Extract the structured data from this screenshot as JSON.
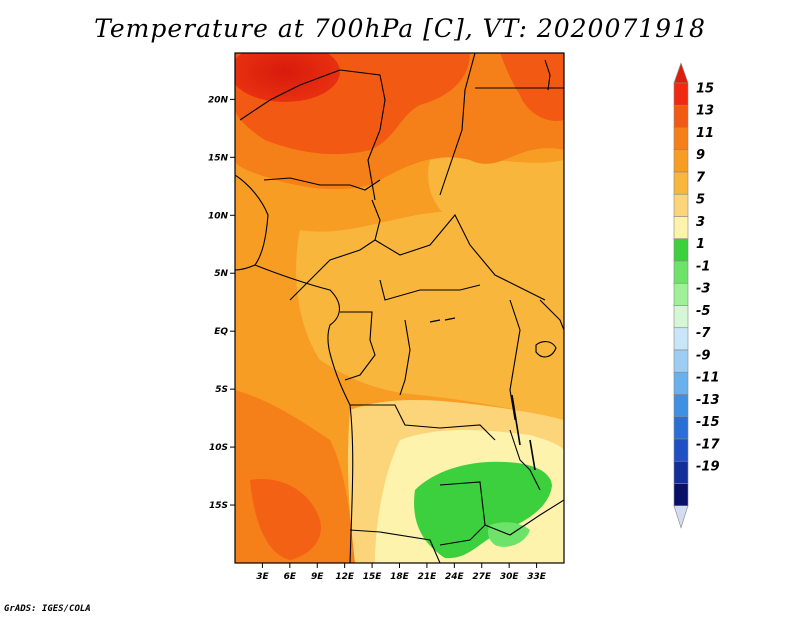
{
  "title": "Temperature at 700hPa [C], VT: 2020071918",
  "credit": "GrADS: IGES/COLA",
  "map": {
    "variable": "Temperature at 700hPa",
    "units": "C",
    "valid_time": "2020071918",
    "lon_range": [
      0,
      36
    ],
    "lat_range": [
      -20,
      24
    ],
    "lat_ticks": [
      {
        "value": 20,
        "label": "20N"
      },
      {
        "value": 15,
        "label": "15N"
      },
      {
        "value": 10,
        "label": "10N"
      },
      {
        "value": 5,
        "label": "5N"
      },
      {
        "value": 0,
        "label": "EQ"
      },
      {
        "value": -5,
        "label": "5S"
      },
      {
        "value": -10,
        "label": "10S"
      },
      {
        "value": -15,
        "label": "15S"
      }
    ],
    "lon_ticks": [
      {
        "value": 3,
        "label": "3E"
      },
      {
        "value": 6,
        "label": "6E"
      },
      {
        "value": 9,
        "label": "9E"
      },
      {
        "value": 12,
        "label": "12E"
      },
      {
        "value": 15,
        "label": "15E"
      },
      {
        "value": 18,
        "label": "18E"
      },
      {
        "value": 21,
        "label": "21E"
      },
      {
        "value": 24,
        "label": "24E"
      },
      {
        "value": 27,
        "label": "27E"
      },
      {
        "value": 30,
        "label": "30E"
      },
      {
        "value": 33,
        "label": "33E"
      }
    ]
  },
  "colorbar": {
    "levels": [
      "15",
      "13",
      "11",
      "9",
      "7",
      "5",
      "3",
      "1",
      "-1",
      "-3",
      "-5",
      "-7",
      "-9",
      "-11",
      "-13",
      "-15",
      "-17",
      "-19"
    ],
    "colors": [
      "#ef2a10",
      "#f25a14",
      "#f57f18",
      "#f79d24",
      "#f9b63d",
      "#fcd57a",
      "#fdf3ad",
      "#3ccf3e",
      "#6de36a",
      "#a0f09a",
      "#d6f7d6",
      "#c8e6f8",
      "#9dcdf3",
      "#6ab0ec",
      "#3f90e2",
      "#2a6ed6",
      "#1f50c3",
      "#143098",
      "#08106a"
    ],
    "top_arrow_color": "#dc1f0c",
    "bottom_arrow_color": "#d4dcf4"
  }
}
